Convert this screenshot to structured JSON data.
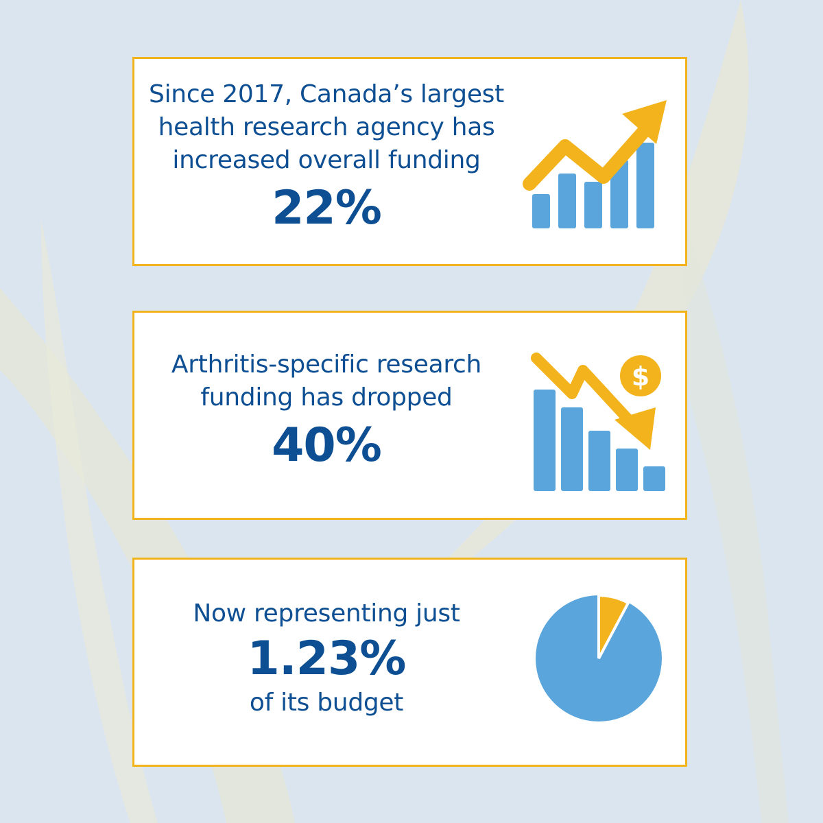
{
  "colors": {
    "background": "#dbe5f0",
    "border": "#f2b31c",
    "text": "#0d4f92",
    "bar": "#5aa6dc",
    "accent": "#f2b31c"
  },
  "stat_increase": {
    "lines": [
      "Since 2017, Canada’s largest",
      "health research agency has",
      "increased overall funding"
    ],
    "value": "22%",
    "icon": "rising-bar-chart-icon"
  },
  "stat_decrease": {
    "lines": [
      "Arthritis-specific research",
      "funding has dropped"
    ],
    "value": "40%",
    "icon": "falling-bar-chart-dollar-icon",
    "coin_symbol": "$"
  },
  "stat_share": {
    "line_before": "Now representing just",
    "value": "1.23%",
    "line_after": "of its budget",
    "icon": "pie-chart-icon"
  }
}
